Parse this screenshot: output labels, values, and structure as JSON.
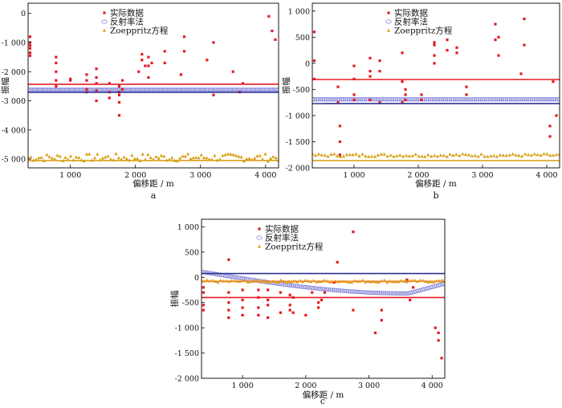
{
  "chart_data": [
    {
      "type": "scatter",
      "panel_label": "a",
      "xlabel": "偏移距 / m",
      "ylabel": "振幅",
      "xlim": [
        350,
        4200
      ],
      "ylim": [
        -5300,
        350
      ],
      "xticks": [
        1000,
        2000,
        3000,
        4000
      ],
      "xtick_labels": [
        "1 000",
        "2 000",
        "3 000",
        "4 000"
      ],
      "yticks": [
        0,
        -1000,
        -2000,
        -3000,
        -4000,
        -5000
      ],
      "ytick_labels": [
        "0",
        "-1 000",
        "-2 000",
        "-3 000",
        "-4 000",
        "-5 000"
      ],
      "legend": [
        "实际数据",
        "反射率法",
        "Zoeppritz方程"
      ],
      "colors": {
        "actual": "#e31c23",
        "reflectivity": "#8a8adc",
        "zoeppritz": "#d9a21b",
        "fit_actual": "#e31c23",
        "fit_reflectivity": "#2e3192",
        "fit_zoeppritz": "#d9a21b"
      },
      "series": {
        "actual": {
          "x": [
            380,
            380,
            380,
            380,
            380,
            380,
            780,
            780,
            780,
            780,
            780,
            1000,
            1000,
            1250,
            1250,
            1250,
            1250,
            1400,
            1400,
            1400,
            1400,
            1400,
            1600,
            1600,
            1600,
            1750,
            1750,
            1750,
            1750,
            1750,
            1800,
            1800,
            2050,
            2100,
            2100,
            2150,
            2200,
            2200,
            2200,
            2250,
            2450,
            2450,
            2700,
            2750,
            2750,
            3100,
            3200,
            3200,
            3500,
            3600,
            3650,
            4050,
            4100,
            4150
          ],
          "y": [
            -800,
            -1000,
            -1100,
            -1200,
            -1350,
            -1450,
            -1500,
            -1700,
            -2000,
            -2300,
            -2500,
            -2250,
            -2300,
            -2100,
            -2300,
            -2600,
            -2700,
            -1900,
            -2200,
            -2400,
            -2650,
            -3000,
            -2400,
            -2700,
            -2900,
            -2500,
            -2700,
            -2800,
            -3050,
            -3500,
            -2300,
            -2600,
            -2000,
            -1400,
            -1600,
            -1800,
            -1500,
            -1800,
            -2200,
            -1700,
            -1300,
            -1700,
            -2100,
            -800,
            -1300,
            -1600,
            -1000,
            -2800,
            -2000,
            -2700,
            -2400,
            -100,
            -600,
            -900
          ]
        },
        "reflectivity": {
          "x0": 350,
          "x1": 4200,
          "n": 130,
          "c": [
            -2620,
            0.000112,
            3.2e-08
          ]
        },
        "zoeppritz": {
          "x0": 350,
          "x1": 4200,
          "n": 95,
          "c": [
            -4950,
            0.00028,
            8.4e-08
          ],
          "noise": 130
        },
        "fit_actual": {
          "c": [
            -2430,
            7.5e-05,
            8.6e-08
          ]
        },
        "fit_reflectivity": {
          "c": [
            -2710,
            0.000116,
            5.2e-08
          ]
        },
        "fit_zoeppritz": {
          "c": [
            -5050,
            0.00025,
            2.12e-07
          ]
        }
      }
    },
    {
      "type": "scatter",
      "panel_label": "b",
      "xlabel": "偏移距 / m",
      "ylabel": "振幅",
      "xlim": [
        350,
        4200
      ],
      "ylim": [
        -2000,
        1150
      ],
      "xticks": [
        1000,
        2000,
        3000,
        4000
      ],
      "xtick_labels": [
        "1 000",
        "2 000",
        "3 000",
        "4 000"
      ],
      "yticks": [
        1000,
        500,
        0,
        -500,
        -1000,
        -1500,
        -2000
      ],
      "ytick_labels": [
        "1 000",
        "500",
        "0",
        "-500",
        "-1 000",
        "-1 500",
        "-2 000"
      ],
      "legend": [
        "实际数据",
        "反射率法",
        "Zoeppritz方程"
      ],
      "colors": {
        "actual": "#e31c23",
        "reflectivity": "#8a8adc",
        "zoeppritz": "#d9a21b",
        "fit_actual": "#e31c23",
        "fit_reflectivity": "#2e3192",
        "fit_zoeppritz": "#d9a21b"
      },
      "series": {
        "actual": {
          "x": [
            380,
            380,
            380,
            750,
            750,
            780,
            780,
            780,
            1000,
            1000,
            1000,
            1000,
            1250,
            1250,
            1250,
            1250,
            1400,
            1400,
            1400,
            1750,
            1750,
            1750,
            1800,
            1800,
            1800,
            2050,
            2050,
            2250,
            2250,
            2250,
            2250,
            2450,
            2450,
            2600,
            2600,
            2750,
            2750,
            3200,
            3200,
            3250,
            3250,
            3600,
            3650,
            3650,
            4050,
            4050,
            4100,
            4150
          ],
          "y": [
            600,
            50,
            -300,
            -450,
            -750,
            -1200,
            -1500,
            -1750,
            -50,
            -300,
            -600,
            -700,
            100,
            -150,
            -250,
            -700,
            50,
            -150,
            -750,
            200,
            -350,
            -750,
            -500,
            -600,
            -700,
            -600,
            -700,
            0,
            150,
            350,
            400,
            450,
            250,
            300,
            200,
            -450,
            -600,
            750,
            450,
            500,
            150,
            -200,
            850,
            350,
            -1200,
            -1400,
            -350,
            -1000
          ]
        },
        "reflectivity": {
          "x0": 350,
          "x1": 4200,
          "n": 120,
          "c": [
            -690,
            4.5e-05,
            3.8e-08
          ]
        },
        "zoeppritz": {
          "x0": 350,
          "x1": 4200,
          "n": 80,
          "c": [
            -1760,
            6e-05,
            2.85e-08
          ],
          "noise": 28
        },
        "fit_actual": {
          "c": [
            -310,
            4e-05,
            9.8e-09
          ]
        },
        "fit_reflectivity": {
          "c": [
            -770,
            6e-05,
            1.4e-08
          ]
        },
        "fit_zoeppritz": {
          "c": [
            -1860,
            9e-05,
            1.1e-08
          ]
        }
      }
    },
    {
      "type": "scatter",
      "panel_label": "c",
      "xlabel": "偏移距 / m",
      "ylabel": "振幅",
      "xlim": [
        350,
        4200
      ],
      "ylim": [
        -2000,
        1150
      ],
      "xticks": [
        1000,
        2000,
        3000,
        4000
      ],
      "xtick_labels": [
        "1 000",
        "2 000",
        "3 000",
        "4 000"
      ],
      "yticks": [
        1000,
        500,
        0,
        -500,
        -1000,
        -1500,
        -2000
      ],
      "ytick_labels": [
        "1 000",
        "500",
        "0",
        "-500",
        "-1 000",
        "-1 500",
        "-2 000"
      ],
      "legend": [
        "实际数据",
        "反射率法",
        "Zoeppritz方程"
      ],
      "colors": {
        "actual": "#e31c23",
        "reflectivity": "#8a8adc",
        "zoeppritz": "#d9a21b",
        "fit_actual": "#e31c23",
        "fit_reflectivity": "#2e3192",
        "fit_zoeppritz": "#f08a24"
      },
      "series": {
        "actual": {
          "x": [
            380,
            380,
            380,
            380,
            780,
            780,
            780,
            780,
            780,
            1000,
            1000,
            1000,
            1000,
            1250,
            1250,
            1250,
            1250,
            1400,
            1400,
            1400,
            1400,
            1600,
            1600,
            1750,
            1750,
            1750,
            1800,
            1800,
            2000,
            2100,
            2200,
            2200,
            2250,
            2300,
            2450,
            2500,
            2750,
            2750,
            3100,
            3200,
            3200,
            3600,
            3650,
            3700,
            4050,
            4100,
            4100,
            4150
          ],
          "y": [
            -550,
            -650,
            -200,
            -300,
            350,
            -300,
            -500,
            -650,
            -800,
            -250,
            -450,
            -600,
            -750,
            -250,
            -400,
            -600,
            -750,
            -250,
            -450,
            -550,
            -800,
            -300,
            -700,
            -350,
            -550,
            -650,
            -400,
            -700,
            -750,
            -300,
            -500,
            -600,
            -450,
            -300,
            -100,
            300,
            900,
            -650,
            -1100,
            -850,
            -650,
            -50,
            -450,
            -200,
            -1000,
            -1100,
            -1250,
            -1600
          ]
        },
        "reflectivity": {
          "x0": 350,
          "x1": 4200,
          "n": 120,
          "c": [
            120,
            -0.0002,
            5e-10
          ],
          "bump": true
        },
        "zoeppritz": {
          "x0": 350,
          "x1": 4200,
          "n": 90,
          "c": [
            -80,
            0.000105,
            5.2e-09
          ],
          "noise": 22
        },
        "fit_actual": {
          "c": [
            -400,
            -3e-05,
            -3e-09
          ]
        },
        "fit_reflectivity": {
          "c": [
            75,
            -3.4e-05,
            -2.7e-08
          ]
        },
        "fit_zoeppritz": {
          "c": [
            -80,
            0.00012,
            4.5e-09
          ]
        }
      }
    }
  ]
}
